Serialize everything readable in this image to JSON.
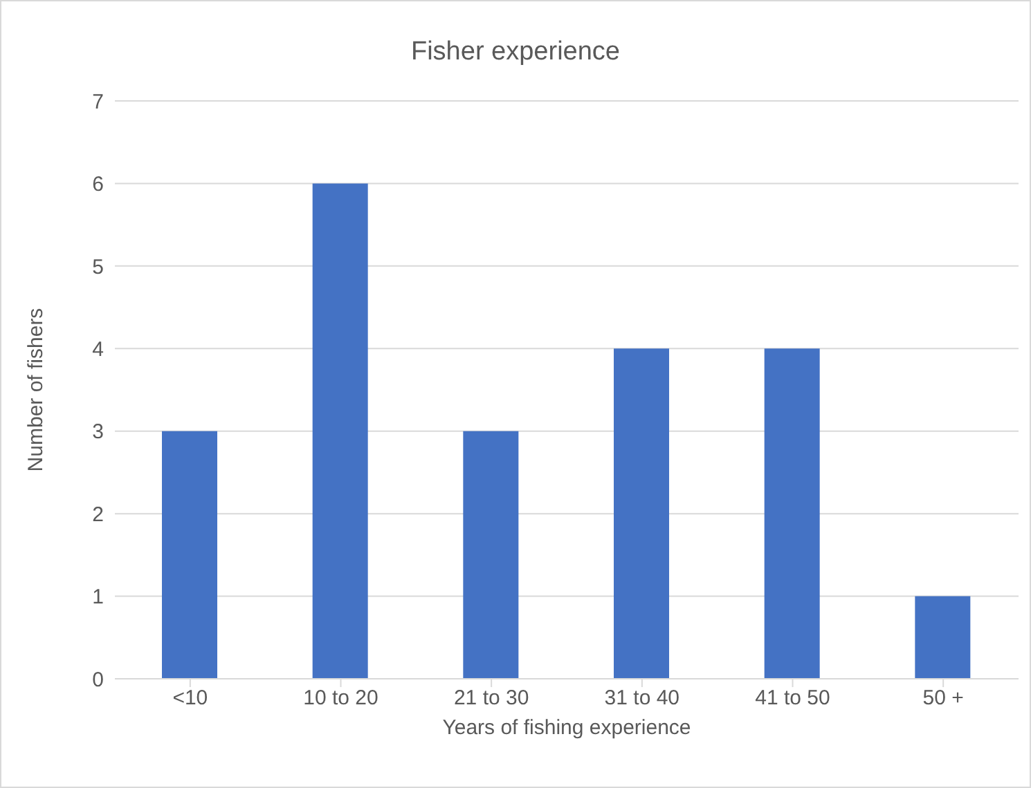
{
  "chart_data": {
    "type": "bar",
    "title": "Fisher experience",
    "xlabel": "Years of fishing experience",
    "ylabel": "Number of fishers",
    "categories": [
      "<10",
      "10 to 20",
      "21 to 30",
      "31 to 40",
      "41 to 50",
      "50 +"
    ],
    "values": [
      3,
      6,
      3,
      4,
      4,
      1
    ],
    "color": "#4472c4",
    "ylim": [
      0,
      7
    ],
    "yticks": [
      0,
      1,
      2,
      3,
      4,
      5,
      6,
      7
    ],
    "grid": "y"
  }
}
